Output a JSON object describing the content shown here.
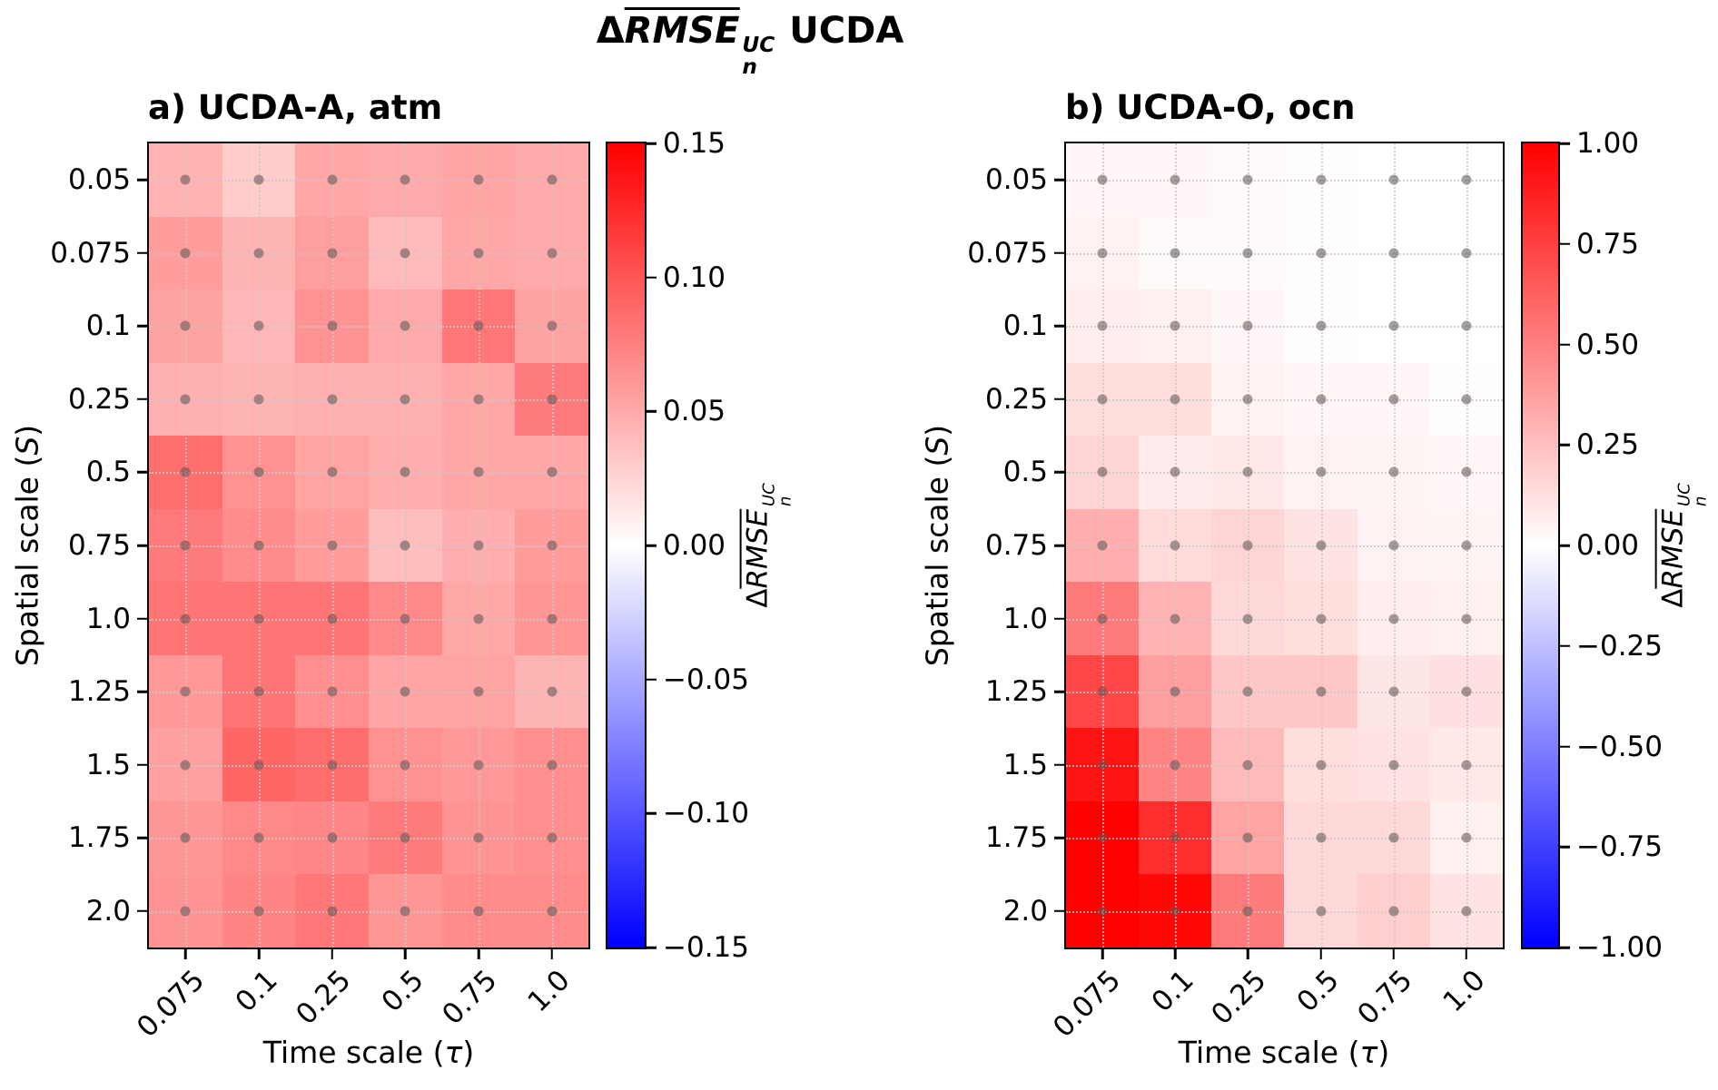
{
  "chart_data": {
    "type": "heatmap",
    "figure_title": {
      "delta": "Δ",
      "overlined": "RMSE",
      "sup": "UC",
      "sub": "n",
      "suffix": "UCDA"
    },
    "colorbar_label": {
      "delta": "Δ",
      "overlined": "RMSE",
      "sup": "UC",
      "sub": "n"
    },
    "xlabel": {
      "pre": "Time scale (",
      "math": "τ",
      "post": ")"
    },
    "ylabel": {
      "pre": "Spatial scale (",
      "math": "S",
      "post": ")"
    },
    "x": [
      0.075,
      0.1,
      0.25,
      0.5,
      0.75,
      1.0
    ],
    "y": [
      0.05,
      0.075,
      0.1,
      0.25,
      0.5,
      0.75,
      1.0,
      1.25,
      1.5,
      1.75,
      2.0
    ],
    "x_tick_labels": [
      "0.075",
      "0.1",
      "0.25",
      "0.5",
      "0.75",
      "1.0"
    ],
    "y_tick_labels": [
      "0.05",
      "0.075",
      "0.1",
      "0.25",
      "0.5",
      "0.75",
      "1.0",
      "1.25",
      "1.5",
      "1.75",
      "2.0"
    ],
    "colormap": "bwr",
    "grid": true,
    "markers": "gray dots at every cell center",
    "style": {
      "cmap_positive": "#ff0000",
      "cmap_zero": "#ffffff",
      "cmap_negative": "#0000ff",
      "marker_color": "rgba(92,82,82,0.55)",
      "grid_color": "#c8c8c8"
    },
    "panels": [
      {
        "id": "a",
        "title": "a) UCDA-A, atm",
        "vmin": -0.15,
        "vmax": 0.15,
        "colorbar_ticks": [
          "0.15",
          "0.10",
          "0.05",
          "0.00",
          "−0.05",
          "−0.10",
          "−0.15"
        ],
        "values": [
          [
            0.045,
            0.03,
            0.052,
            0.05,
            0.053,
            0.05
          ],
          [
            0.058,
            0.044,
            0.057,
            0.04,
            0.052,
            0.05
          ],
          [
            0.055,
            0.043,
            0.064,
            0.05,
            0.08,
            0.055
          ],
          [
            0.046,
            0.044,
            0.046,
            0.046,
            0.052,
            0.078
          ],
          [
            0.085,
            0.065,
            0.054,
            0.048,
            0.052,
            0.052
          ],
          [
            0.078,
            0.068,
            0.058,
            0.038,
            0.047,
            0.058
          ],
          [
            0.082,
            0.081,
            0.082,
            0.07,
            0.051,
            0.062
          ],
          [
            0.06,
            0.082,
            0.066,
            0.053,
            0.054,
            0.044
          ],
          [
            0.056,
            0.09,
            0.086,
            0.065,
            0.06,
            0.066
          ],
          [
            0.062,
            0.07,
            0.071,
            0.078,
            0.063,
            0.066
          ],
          [
            0.063,
            0.072,
            0.08,
            0.062,
            0.068,
            0.068
          ]
        ]
      },
      {
        "id": "b",
        "title": "b) UCDA-O, ocn",
        "vmin": -1.0,
        "vmax": 1.0,
        "colorbar_ticks": [
          "1.00",
          "0.75",
          "0.50",
          "0.25",
          "0.00",
          "−0.25",
          "−0.50",
          "−0.75",
          "−1.00"
        ],
        "values": [
          [
            0.03,
            0.03,
            0.02,
            0.01,
            0.0,
            0.0
          ],
          [
            0.05,
            0.02,
            0.02,
            0.01,
            0.0,
            0.0
          ],
          [
            0.07,
            0.06,
            0.03,
            0.01,
            0.0,
            0.0
          ],
          [
            0.13,
            0.13,
            0.05,
            0.03,
            0.03,
            0.01
          ],
          [
            0.17,
            0.08,
            0.09,
            0.05,
            0.04,
            0.03
          ],
          [
            0.32,
            0.14,
            0.17,
            0.11,
            0.05,
            0.04
          ],
          [
            0.52,
            0.3,
            0.15,
            0.13,
            0.07,
            0.06
          ],
          [
            0.72,
            0.38,
            0.22,
            0.22,
            0.1,
            0.12
          ],
          [
            0.92,
            0.48,
            0.27,
            0.13,
            0.11,
            0.09
          ],
          [
            1.0,
            0.82,
            0.36,
            0.15,
            0.15,
            0.06
          ],
          [
            1.0,
            0.97,
            0.52,
            0.15,
            0.19,
            0.11
          ]
        ]
      }
    ]
  }
}
